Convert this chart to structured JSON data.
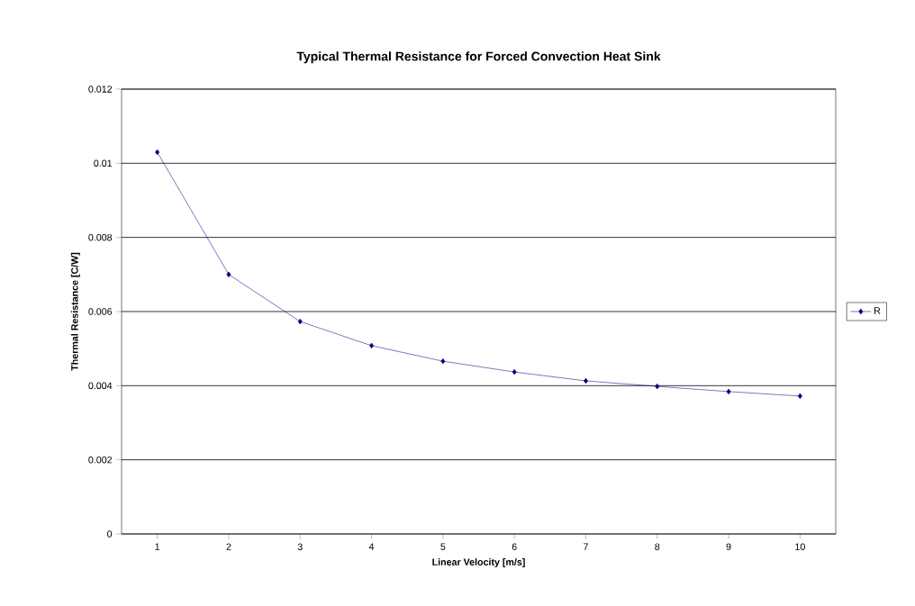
{
  "chart_data": {
    "type": "line",
    "title": "Typical Thermal Resistance for Forced Convection Heat Sink",
    "xlabel": "Linear Velocity [m/s]",
    "ylabel": "Thermal Resistance [C/W]",
    "categories": [
      "1",
      "2",
      "3",
      "4",
      "5",
      "6",
      "7",
      "8",
      "9",
      "10"
    ],
    "series": [
      {
        "name": "R",
        "color": "#000080",
        "values": [
          0.0103,
          0.007,
          0.00573,
          0.00508,
          0.00466,
          0.00437,
          0.00413,
          0.00398,
          0.00384,
          0.00372
        ]
      }
    ],
    "ylim": [
      0,
      0.012
    ],
    "yticks": [
      0,
      0.002,
      0.004,
      0.006,
      0.008,
      0.01,
      0.012
    ],
    "grid": "y",
    "legend": "right",
    "marker": "diamond",
    "line_style": "solid"
  }
}
